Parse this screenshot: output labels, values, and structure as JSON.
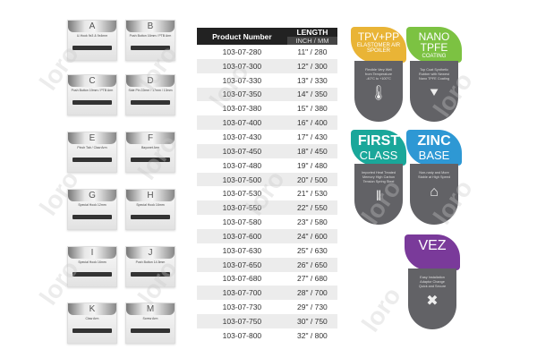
{
  "adapters": [
    {
      "letter": "A",
      "label": "U-Hook 9x3 & 9x4mm"
    },
    {
      "letter": "B",
      "label": "Push Button 16mm / PTB Arm"
    },
    {
      "letter": "C",
      "label": "Push Button 19mm / PTB Arm"
    },
    {
      "letter": "D",
      "label": "Side Pin 22mm / 17mm / 13mm"
    },
    {
      "letter": "E",
      "label": "Pinch Tab / Claw Arm"
    },
    {
      "letter": "F",
      "label": "Bayonet Arm"
    },
    {
      "letter": "G",
      "label": "Special Hook 12mm"
    },
    {
      "letter": "H",
      "label": "Special Hook 16mm"
    },
    {
      "letter": "I",
      "label": "Special Hook 16mm"
    },
    {
      "letter": "J",
      "label": "Push Button 14.5mm"
    },
    {
      "letter": "K",
      "label": "Claw Arm"
    },
    {
      "letter": "M",
      "label": "Screw Arm"
    }
  ],
  "table": {
    "header_product": "Product Number",
    "header_length": "LENGTH",
    "header_units": "INCH / MM",
    "rows": [
      [
        "103-07-280",
        "11\" / 280"
      ],
      [
        "103-07-300",
        "12\" / 300"
      ],
      [
        "103-07-330",
        "13\" / 330"
      ],
      [
        "103-07-350",
        "14\" / 350"
      ],
      [
        "103-07-380",
        "15\" / 380"
      ],
      [
        "103-07-400",
        "16\" / 400"
      ],
      [
        "103-07-430",
        "17\" / 430"
      ],
      [
        "103-07-450",
        "18\" / 450"
      ],
      [
        "103-07-480",
        "19\" / 480"
      ],
      [
        "103-07-500",
        "20\" / 500"
      ],
      [
        "103-07-530",
        "21\" / 530"
      ],
      [
        "103-07-550",
        "22\" / 550"
      ],
      [
        "103-07-580",
        "23\" / 580"
      ],
      [
        "103-07-600",
        "24\" / 600"
      ],
      [
        "103-07-630",
        "25\" / 630"
      ],
      [
        "103-07-650",
        "26\" / 650"
      ],
      [
        "103-07-680",
        "27\" / 680"
      ],
      [
        "103-07-700",
        "28\" / 700"
      ],
      [
        "103-07-730",
        "29\" / 730"
      ],
      [
        "103-07-750",
        "30\" / 750"
      ],
      [
        "103-07-800",
        "32\" / 800"
      ]
    ]
  },
  "features": [
    {
      "title": "TPV+PP",
      "subtitle": "ELASTOMER AIR SPOILER",
      "desc": "Flexible Very Well from Temperature -40°C to +100°C",
      "icon": "thermometer-icon",
      "color": "#e9b436"
    },
    {
      "title": "NANO TPFE",
      "subtitle": "COATING",
      "desc": "Top Coat Synthetic Rubber with Newest Nano TPFE Coating",
      "icon": "blade-icon",
      "color": "#7cc242"
    },
    {
      "title": "FIRST",
      "subtitle": "CLASS",
      "desc": "Imported Heat Treated Memory High Carbon Tension Spring Steel",
      "icon": "spring-icon",
      "color": "#1aa79a"
    },
    {
      "title": "ZINC",
      "subtitle": "BASE",
      "desc": "Non-rusty and More Stable at High Speed",
      "icon": "car-icon",
      "color": "#2e98d4"
    },
    {
      "title": "VEZ",
      "subtitle": "",
      "desc": "Easy Installation Adaptor Change Quick and Secure",
      "icon": "tools-icon",
      "color": "#7a3a9a"
    }
  ],
  "watermark": "loro"
}
